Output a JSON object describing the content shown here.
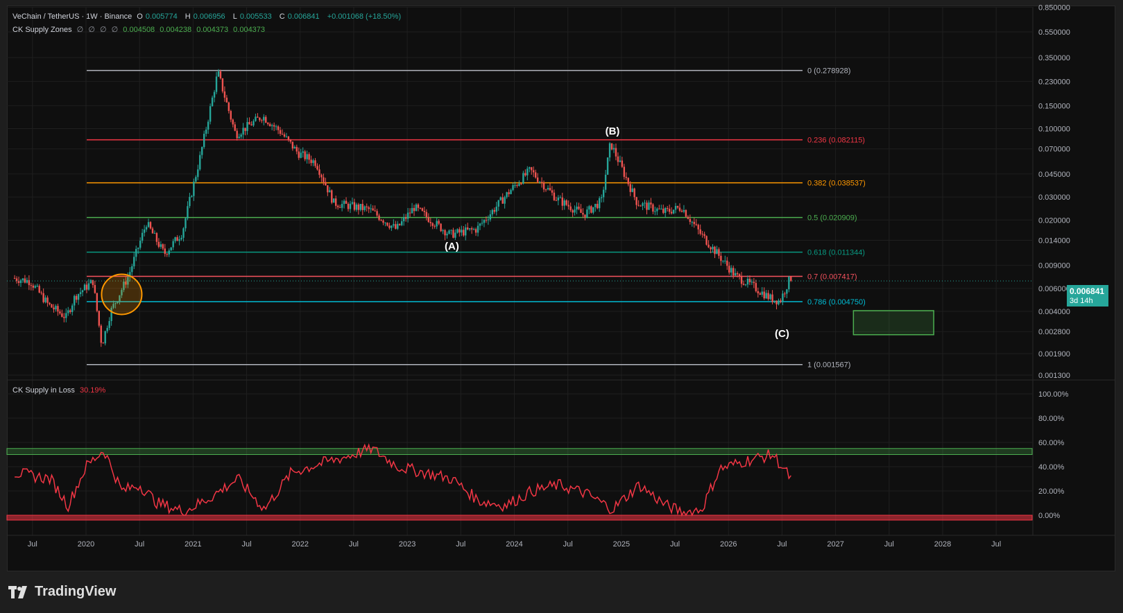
{
  "header": {
    "symbol": "VeChain / TetherUS · 1W · Binance",
    "ohlc": {
      "o_label": "O",
      "o": "0.005774",
      "h_label": "H",
      "h": "0.006956",
      "l_label": "L",
      "l": "0.005533",
      "c_label": "C",
      "c": "0.006841",
      "change": "+0.001068 (+18.50%)"
    },
    "indicator1": {
      "name": "CK Supply Zones",
      "empties": [
        "∅",
        "∅",
        "∅",
        "∅"
      ],
      "values": [
        "0.004508",
        "0.004238",
        "0.004373",
        "0.004373"
      ]
    },
    "indicator2": {
      "name": "CK Supply in Loss",
      "value": "30.19%"
    }
  },
  "price_tag": {
    "price": "0.006841",
    "countdown": "3d 14h"
  },
  "branding": {
    "logo_text": "TradingView"
  },
  "colors": {
    "up": "#26a69a",
    "down": "#ef5350",
    "fib_0": "#b2b5be",
    "fib_236": "#f23645",
    "fib_382": "#ff9800",
    "fib_5": "#4caf50",
    "fib_618": "#089981",
    "fib_7": "#f7525f",
    "fib_786": "#00bcd4",
    "fib_1": "#b2b5be",
    "loss_line": "#f23645"
  },
  "chart_data": [
    {
      "type": "candlestick",
      "scale": "log",
      "y_ticks": [
        "0.001300",
        "0.001900",
        "0.002800",
        "0.004000",
        "0.006000",
        "0.009000",
        "0.014000",
        "0.020000",
        "0.030000",
        "0.045000",
        "0.070000",
        "0.100000",
        "0.150000",
        "0.230000",
        "0.350000",
        "0.550000",
        "0.850000"
      ],
      "x_ticks": [
        "Jul",
        "2020",
        "Jul",
        "2021",
        "Jul",
        "2022",
        "Jul",
        "2023",
        "Jul",
        "2024",
        "Jul",
        "2025",
        "Jul",
        "2026",
        "Jul",
        "2027",
        "Jul",
        "2028",
        "Jul"
      ],
      "fib_levels": [
        {
          "ratio": "0",
          "value": 0.278928,
          "label": "0 (0.278928)"
        },
        {
          "ratio": "0.236",
          "value": 0.082115,
          "label": "0.236 (0.082115)"
        },
        {
          "ratio": "0.382",
          "value": 0.038537,
          "label": "0.382 (0.038537)"
        },
        {
          "ratio": "0.5",
          "value": 0.020909,
          "label": "0.5 (0.020909)"
        },
        {
          "ratio": "0.618",
          "value": 0.011344,
          "label": "0.618 (0.011344)"
        },
        {
          "ratio": "0.7",
          "value": 0.007417,
          "label": "0.7 (0.007417)"
        },
        {
          "ratio": "0.786",
          "value": 0.00475,
          "label": "0.786 (0.004750)"
        },
        {
          "ratio": "1",
          "value": 0.001567,
          "label": "1 (0.001567)"
        }
      ],
      "wave_labels": [
        "(A)",
        "(B)",
        "(C)"
      ],
      "price_path": [
        [
          "2019-05",
          0.0072
        ],
        [
          "2019-07",
          0.0068
        ],
        [
          "2019-09",
          0.0045
        ],
        [
          "2019-11",
          0.0036
        ],
        [
          "2019-12",
          0.0052
        ],
        [
          "2020-02",
          0.0068
        ],
        [
          "2020-03",
          0.0022
        ],
        [
          "2020-04",
          0.004
        ],
        [
          "2020-06",
          0.0075
        ],
        [
          "2020-08",
          0.019
        ],
        [
          "2020-10",
          0.011
        ],
        [
          "2020-12",
          0.016
        ],
        [
          "2021-02",
          0.06
        ],
        [
          "2021-04",
          0.27
        ],
        [
          "2021-06",
          0.09
        ],
        [
          "2021-09",
          0.125
        ],
        [
          "2021-11",
          0.095
        ],
        [
          "2022-01",
          0.065
        ],
        [
          "2022-03",
          0.055
        ],
        [
          "2022-05",
          0.027
        ],
        [
          "2022-09",
          0.024
        ],
        [
          "2022-12",
          0.017
        ],
        [
          "2023-02",
          0.025
        ],
        [
          "2023-06",
          0.0155
        ],
        [
          "2023-09",
          0.017
        ],
        [
          "2024-01",
          0.035
        ],
        [
          "2024-03",
          0.048
        ],
        [
          "2024-06",
          0.029
        ],
        [
          "2024-09",
          0.022
        ],
        [
          "2024-11",
          0.028
        ],
        [
          "2024-12",
          0.078
        ],
        [
          "2025-03",
          0.027
        ],
        [
          "2025-06",
          0.023
        ],
        [
          "2025-08",
          0.025
        ],
        [
          "2025-10",
          0.016
        ],
        [
          "2025-12",
          0.011
        ],
        [
          "2026-02",
          0.0075
        ],
        [
          "2026-04",
          0.0062
        ],
        [
          "2026-06",
          0.005
        ],
        [
          "2026-07",
          0.0048
        ],
        [
          "2026-08",
          0.006841
        ]
      ],
      "supply_zone": {
        "low": 0.00265,
        "high": 0.00405,
        "x_start": "2027-03",
        "x_end": "2027-12"
      }
    },
    {
      "type": "line",
      "name": "CK Supply in Loss",
      "y_ticks": [
        "0.00%",
        "20.00%",
        "40.00%",
        "60.00%",
        "80.00%",
        "100.00%"
      ],
      "ylim": [
        0,
        100
      ],
      "bands": [
        {
          "low": 50,
          "high": 55
        },
        {
          "low": -4,
          "high": 0
        }
      ],
      "x": [
        "2019-05",
        "2019-09",
        "2019-11",
        "2020-01",
        "2020-03",
        "2020-05",
        "2020-07",
        "2020-09",
        "2020-12",
        "2021-03",
        "2021-06",
        "2021-09",
        "2021-12",
        "2022-03",
        "2022-06",
        "2022-09",
        "2022-12",
        "2023-03",
        "2023-06",
        "2023-09",
        "2023-12",
        "2024-03",
        "2024-06",
        "2024-09",
        "2024-12",
        "2025-03",
        "2025-06",
        "2025-08",
        "2025-10",
        "2025-12",
        "2026-03",
        "2026-06",
        "2026-08"
      ],
      "values": [
        35,
        30,
        8,
        40,
        54,
        20,
        25,
        10,
        3,
        15,
        30,
        5,
        35,
        42,
        48,
        55,
        40,
        35,
        30,
        12,
        8,
        20,
        25,
        18,
        5,
        25,
        8,
        2,
        5,
        38,
        45,
        50,
        30
      ]
    }
  ]
}
